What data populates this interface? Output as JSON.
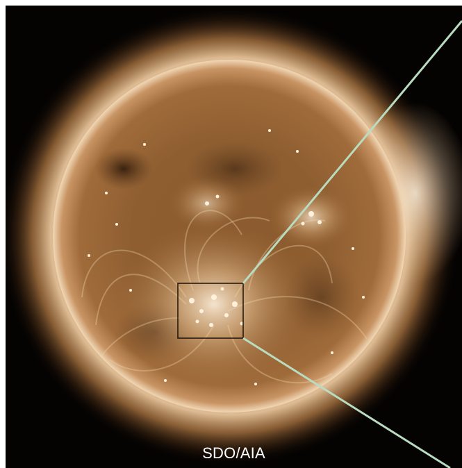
{
  "image": {
    "caption": "SDO/AIA",
    "colors": {
      "background": "#050302",
      "sun_core": "#8a5a2e",
      "sun_limb": "#f3d9b6",
      "zoom_box_stroke": "#1a1108",
      "zoom_lines": "#b9dcc0"
    },
    "subject": "solar-disk",
    "features": [
      "corona",
      "active-region",
      "coronal-loops",
      "zoom-box",
      "zoom-lines"
    ]
  }
}
